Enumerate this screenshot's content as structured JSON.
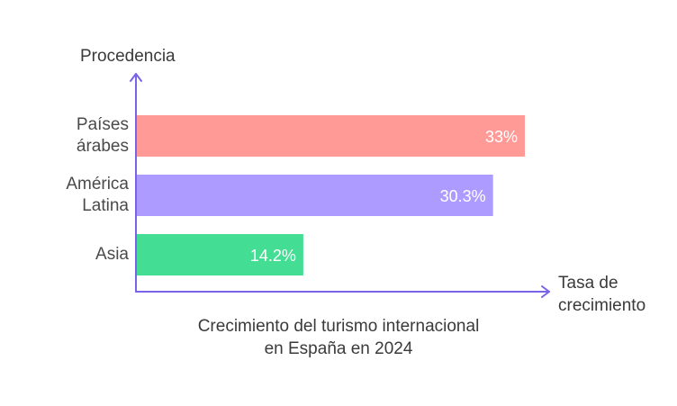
{
  "chart_data": {
    "type": "bar",
    "orientation": "horizontal",
    "categories": [
      [
        "Países",
        "árabes"
      ],
      [
        "América",
        "Latina"
      ],
      [
        "Asia"
      ]
    ],
    "values": [
      33,
      30.3,
      14.2
    ],
    "value_labels": [
      "33%",
      "30.3%",
      "14.2%"
    ],
    "colors": [
      "#ff9a97",
      "#ae9bff",
      "#44dd94"
    ],
    "ylabel": "Procedencia",
    "xlabel": [
      "Tasa de",
      "crecimiento"
    ],
    "title_lines": [
      "Crecimiento del turismo internacional",
      "en España en 2024"
    ],
    "xlim": [
      0,
      37
    ],
    "axis_color": "#7a63e6",
    "grid": false
  }
}
